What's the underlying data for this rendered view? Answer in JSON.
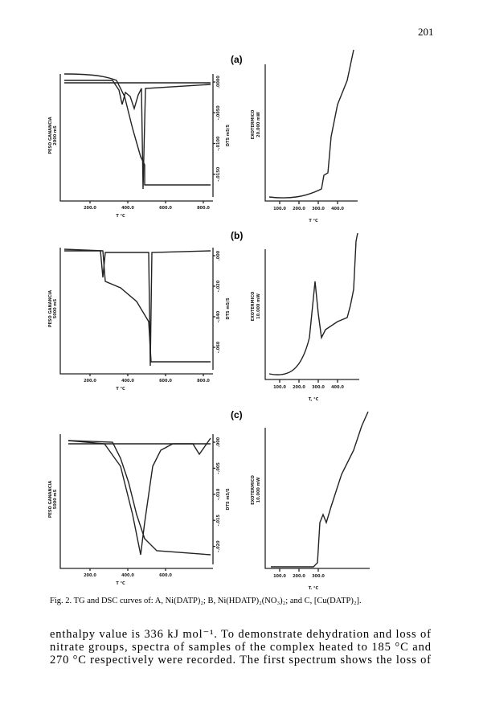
{
  "page_number": "201",
  "figure": {
    "panels": [
      {
        "label": "(a)",
        "tg_ylabel": "PESO GANANCIA",
        "tg_yunits": "2000 mS",
        "tg_xticks": [
          "200.0",
          "400.0",
          "600.0",
          "800.0"
        ],
        "tg_xlabel": "T °C",
        "dts_ticks": [
          ".0000",
          "-.0050",
          "-.0100",
          "-.0150"
        ],
        "dts_label": "DTS mS/S",
        "dsc_ylabel": "EXOTERMICO",
        "dsc_yunits": "20.000 mW",
        "dsc_xticks": [
          "100.0",
          "200.0",
          "300.0",
          "400.0"
        ],
        "dsc_xlabel": "T °C"
      },
      {
        "label": "(b)",
        "tg_ylabel": "PESO GANANCIA",
        "tg_yunits": "5000 mS",
        "tg_xticks": [
          "200.0",
          "400.0",
          "600.0",
          "800.0"
        ],
        "tg_xlabel": "T °C",
        "dts_ticks": [
          ".000",
          "-.020",
          "-.040",
          "-.060"
        ],
        "dts_label": "DTS mS/S",
        "dsc_ylabel": "EXOTERMICO",
        "dsc_yunits": "10.000 mW",
        "dsc_xticks": [
          "100.0",
          "200.0",
          "300.0",
          "400.0"
        ],
        "dsc_xlabel": "T, °C"
      },
      {
        "label": "(c)",
        "tg_ylabel": "PESO GANANCIA",
        "tg_yunits": "5000 mS",
        "tg_xticks": [
          "200.0",
          "400.0",
          "600.0"
        ],
        "tg_xlabel": "T °C",
        "dts_ticks": [
          ".000",
          "-.005",
          "-.010",
          "-.015",
          "-.020"
        ],
        "dts_label": "DTS mS/S",
        "dsc_ylabel": "EXOTERMICO",
        "dsc_yunits": "10.000 mW",
        "dsc_xticks": [
          "100.0",
          "200.0",
          "300.0"
        ],
        "dsc_xlabel": "T. °C"
      }
    ],
    "caption": "Fig. 2. TG and DSC curves of: A, Ni(DATP)₂; B, Ni(HDATP)₂(NO₃)₂; and C, [Cu(DATP)₂]."
  },
  "body": [
    "enthalpy value is 336 kJ mol⁻¹. To demonstrate dehydration and loss of",
    "nitrate groups, spectra of samples of the complex heated to 185 °C and",
    "270 °C respectively were recorded. The first spectrum shows the loss of"
  ]
}
